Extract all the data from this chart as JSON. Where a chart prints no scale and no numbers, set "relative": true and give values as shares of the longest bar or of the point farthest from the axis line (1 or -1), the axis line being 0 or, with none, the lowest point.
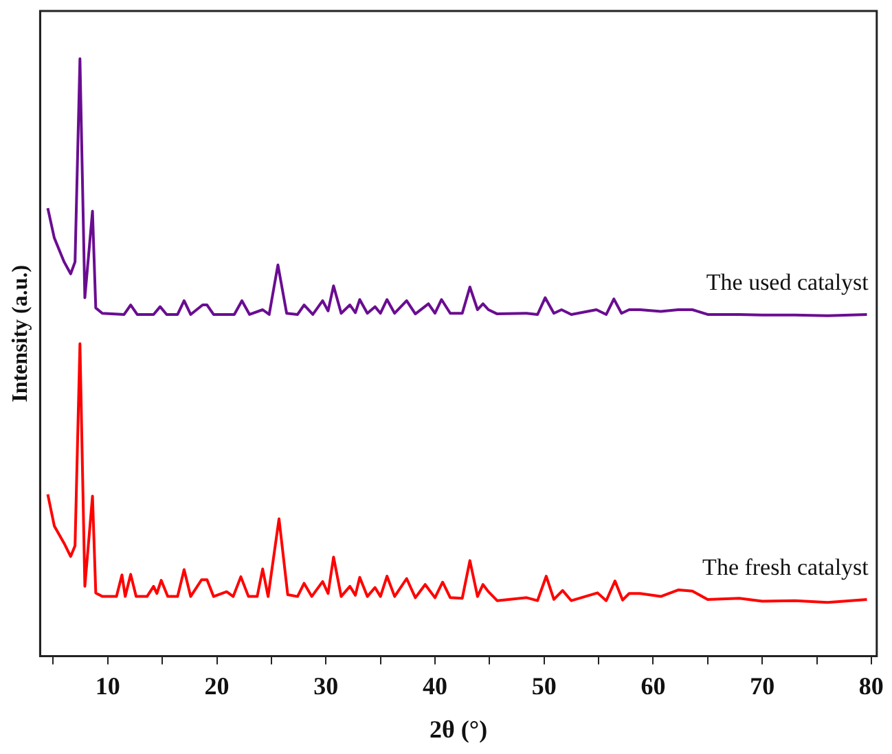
{
  "chart_data": {
    "type": "line",
    "relative": true,
    "xlabel": "2θ (°)",
    "ylabel": "Intensity (a.u.)",
    "xlim": [
      3.8,
      80.5
    ],
    "xticks": [
      {
        "value": 5,
        "label": null
      },
      10,
      {
        "value": 15,
        "label": null
      },
      20,
      {
        "value": 25,
        "label": null
      },
      30,
      {
        "value": 35,
        "label": null
      },
      40,
      {
        "value": 45,
        "label": null
      },
      50,
      {
        "value": 55,
        "label": null
      },
      60,
      {
        "value": 65,
        "label": null
      },
      70,
      {
        "value": 75,
        "label": null
      },
      80
    ],
    "grid": false,
    "legend": false,
    "marker": "none",
    "line_style": "solid",
    "series": [
      {
        "name": "The used catalyst",
        "color": "#6a0d91",
        "x": [
          4.5,
          5.1,
          6.0,
          6.6,
          7.0,
          7.45,
          7.9,
          8.6,
          8.9,
          9.5,
          11.5,
          12.1,
          12.7,
          14.2,
          14.8,
          15.4,
          16.4,
          17.0,
          17.6,
          18.7,
          19.1,
          19.7,
          21.6,
          22.3,
          23.0,
          24.2,
          24.8,
          25.6,
          26.4,
          27.4,
          28.0,
          28.8,
          29.7,
          30.2,
          30.7,
          31.4,
          32.2,
          32.7,
          33.1,
          33.8,
          34.5,
          35.0,
          35.6,
          36.3,
          37.4,
          38.2,
          39.4,
          40.0,
          40.6,
          41.4,
          42.5,
          43.2,
          43.9,
          44.4,
          44.9,
          45.7,
          48.4,
          49.4,
          50.1,
          50.9,
          51.6,
          52.5,
          54.8,
          55.7,
          56.4,
          57.1,
          57.8,
          58.8,
          60.7,
          62.3,
          63.6,
          65.0,
          67.9,
          70.0,
          73.0,
          76.0,
          79.6
        ],
        "values": [
          0.75,
          0.7,
          0.66,
          0.64,
          0.66,
          1.0,
          0.6,
          0.745,
          0.583,
          0.574,
          0.572,
          0.588,
          0.572,
          0.572,
          0.585,
          0.572,
          0.572,
          0.595,
          0.572,
          0.588,
          0.588,
          0.572,
          0.572,
          0.595,
          0.572,
          0.58,
          0.572,
          0.655,
          0.574,
          0.572,
          0.588,
          0.572,
          0.595,
          0.578,
          0.62,
          0.574,
          0.588,
          0.575,
          0.597,
          0.574,
          0.585,
          0.574,
          0.597,
          0.574,
          0.595,
          0.573,
          0.59,
          0.574,
          0.597,
          0.574,
          0.574,
          0.618,
          0.58,
          0.59,
          0.58,
          0.573,
          0.574,
          0.572,
          0.6,
          0.574,
          0.58,
          0.572,
          0.58,
          0.572,
          0.598,
          0.574,
          0.58,
          0.58,
          0.577,
          0.58,
          0.58,
          0.572,
          0.572,
          0.571,
          0.571,
          0.57,
          0.572
        ]
      },
      {
        "name": "The fresh catalyst",
        "color": "#ff0000",
        "x": [
          4.5,
          5.1,
          6.0,
          6.6,
          7.0,
          7.45,
          7.9,
          8.6,
          8.9,
          9.5,
          10.8,
          11.3,
          11.6,
          12.1,
          12.6,
          13.6,
          14.2,
          14.5,
          14.9,
          15.5,
          16.4,
          17.0,
          17.6,
          18.6,
          19.1,
          19.7,
          20.9,
          21.5,
          22.2,
          22.9,
          23.7,
          24.2,
          24.7,
          25.7,
          26.5,
          27.4,
          28.0,
          28.7,
          29.7,
          30.2,
          30.7,
          31.4,
          32.2,
          32.7,
          33.1,
          33.8,
          34.5,
          35.0,
          35.6,
          36.3,
          37.4,
          38.2,
          39.1,
          40.0,
          40.7,
          41.4,
          42.5,
          43.2,
          43.9,
          44.4,
          44.9,
          45.7,
          48.4,
          49.4,
          50.2,
          50.9,
          51.7,
          52.5,
          54.9,
          55.7,
          56.5,
          57.2,
          57.8,
          58.8,
          60.7,
          62.3,
          63.6,
          65.0,
          67.9,
          70.0,
          73.0,
          76.0,
          79.6
        ],
        "values": [
          0.271,
          0.218,
          0.189,
          0.167,
          0.185,
          0.523,
          0.117,
          0.268,
          0.106,
          0.1,
          0.1,
          0.136,
          0.1,
          0.137,
          0.1,
          0.1,
          0.117,
          0.105,
          0.127,
          0.1,
          0.1,
          0.145,
          0.1,
          0.128,
          0.128,
          0.1,
          0.108,
          0.1,
          0.133,
          0.1,
          0.1,
          0.146,
          0.1,
          0.23,
          0.103,
          0.1,
          0.122,
          0.1,
          0.125,
          0.105,
          0.166,
          0.1,
          0.117,
          0.102,
          0.132,
          0.1,
          0.115,
          0.1,
          0.134,
          0.1,
          0.13,
          0.098,
          0.12,
          0.098,
          0.124,
          0.098,
          0.097,
          0.16,
          0.1,
          0.12,
          0.108,
          0.093,
          0.098,
          0.093,
          0.134,
          0.095,
          0.11,
          0.093,
          0.106,
          0.093,
          0.126,
          0.094,
          0.105,
          0.105,
          0.1,
          0.111,
          0.109,
          0.095,
          0.097,
          0.092,
          0.093,
          0.09,
          0.095
        ]
      }
    ]
  }
}
